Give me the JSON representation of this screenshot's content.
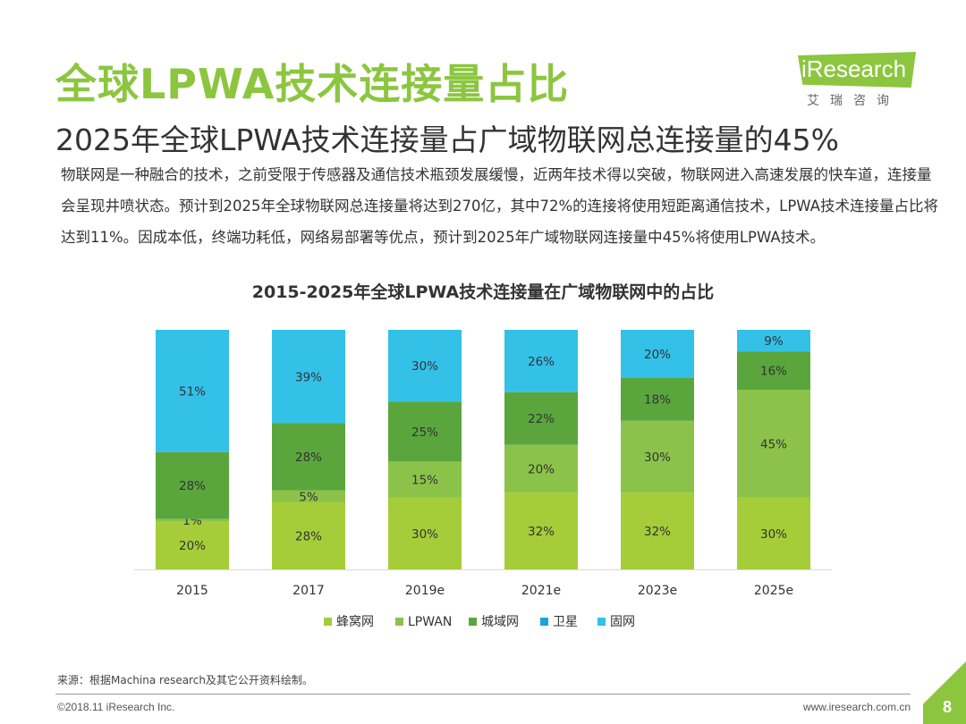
{
  "header": {
    "title": "全球LPWA技术连接量占比",
    "subtitle": "2025年全球LPWA技术连接量占广域物联网总连接量的45%"
  },
  "logo": {
    "text": "iResearch",
    "sub": "艾瑞咨询"
  },
  "body": {
    "paragraph": "物联网是一种融合的技术，之前受限于传感器及通信技术瓶颈发展缓慢，近两年技术得以突破，物联网进入高速发展的快车道，连接量会呈现井喷状态。预计到2025年全球物联网总连接量将达到270亿，其中72%的连接将使用短距离通信技术，LPWA技术连接量占比将达到11%。因成本低，终端功耗低，网络易部署等优点，预计到2025年广域物联网连接量中45%将使用LPWA技术。"
  },
  "chart_data": {
    "type": "bar",
    "stacked": true,
    "title": "2015-2025年全球LPWA技术连接量在广域物联网中的占比",
    "categories": [
      "2015",
      "2017",
      "2019e",
      "2021e",
      "2023e",
      "2025e"
    ],
    "series": [
      {
        "name": "蜂窝网",
        "color": "#a5cd39",
        "values": [
          20,
          28,
          30,
          32,
          32,
          30
        ]
      },
      {
        "name": "LPWAN",
        "color": "#8bc34a",
        "values": [
          1,
          5,
          15,
          20,
          30,
          45
        ]
      },
      {
        "name": "城域网",
        "color": "#5aa63d",
        "values": [
          28,
          28,
          25,
          22,
          18,
          16
        ]
      },
      {
        "name": "卫星",
        "color": "#1ba3dc",
        "values": [
          0,
          0,
          0,
          0,
          0,
          0
        ]
      },
      {
        "name": "固网",
        "color": "#33c1e8",
        "values": [
          51,
          39,
          30,
          26,
          20,
          9
        ]
      }
    ],
    "ylim": [
      0,
      100
    ],
    "grid": false,
    "legend_position": "bottom"
  },
  "footer": {
    "source": "来源：根据Machina  research及其它公开资料绘制。",
    "copyright": "©2018.11 iResearch Inc.",
    "website": "www.iresearch.com.cn",
    "page_number": "8"
  }
}
